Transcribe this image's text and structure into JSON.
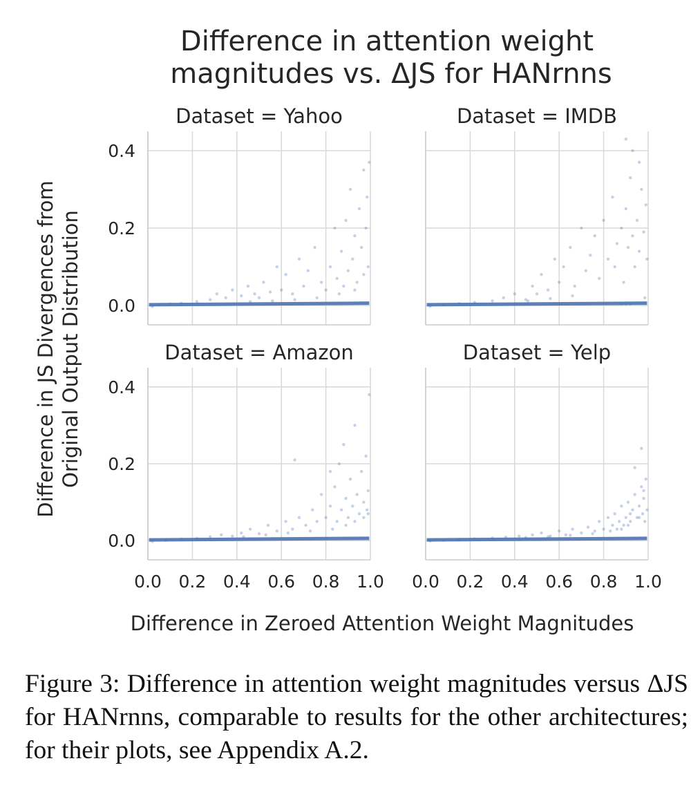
{
  "chart_data": {
    "type": "scatter",
    "title_lines": [
      "Difference in attention weight",
      "magnitudes vs. ΔJS for HANrnns"
    ],
    "xlabel": "Difference in Zeroed Attention Weight Magnitudes",
    "ylabel_lines": [
      "Difference in JS Divergences from",
      "Original Output Distribution"
    ],
    "xlim": [
      0.0,
      1.0
    ],
    "ylim": [
      -0.05,
      0.45
    ],
    "x_ticks": [
      "0.0",
      "0.2",
      "0.4",
      "0.6",
      "0.8",
      "1.0"
    ],
    "y_ticks": [
      "0.0",
      "0.2",
      "0.4"
    ],
    "x_tick_values": [
      0.0,
      0.2,
      0.4,
      0.6,
      0.8,
      1.0
    ],
    "y_tick_values": [
      0.0,
      0.2,
      0.4
    ],
    "grid": true,
    "color": "#4c72b0",
    "panels": [
      {
        "title": "Dataset = Yahoo",
        "points": [
          [
            0.02,
            -0.003
          ],
          [
            0.05,
            0.002
          ],
          [
            0.1,
            0.004
          ],
          [
            0.15,
            0.006
          ],
          [
            0.22,
            0.01
          ],
          [
            0.28,
            0.015
          ],
          [
            0.31,
            0.03
          ],
          [
            0.35,
            0.02
          ],
          [
            0.38,
            0.04
          ],
          [
            0.42,
            0.025
          ],
          [
            0.45,
            0.05
          ],
          [
            0.48,
            0.03
          ],
          [
            0.5,
            0.02
          ],
          [
            0.52,
            0.06
          ],
          [
            0.55,
            0.035
          ],
          [
            0.58,
            0.1
          ],
          [
            0.6,
            0.04
          ],
          [
            0.62,
            0.08
          ],
          [
            0.65,
            0.03
          ],
          [
            0.68,
            0.12
          ],
          [
            0.7,
            0.05
          ],
          [
            0.72,
            0.09
          ],
          [
            0.75,
            0.15
          ],
          [
            0.78,
            0.06
          ],
          [
            0.8,
            0.04
          ],
          [
            0.82,
            0.1
          ],
          [
            0.84,
            0.2
          ],
          [
            0.85,
            0.07
          ],
          [
            0.87,
            0.14
          ],
          [
            0.88,
            0.05
          ],
          [
            0.89,
            0.22
          ],
          [
            0.9,
            0.09
          ],
          [
            0.91,
            0.3
          ],
          [
            0.92,
            0.12
          ],
          [
            0.93,
            0.18
          ],
          [
            0.94,
            0.06
          ],
          [
            0.95,
            0.25
          ],
          [
            0.96,
            0.15
          ],
          [
            0.97,
            0.35
          ],
          [
            0.98,
            0.2
          ],
          [
            0.985,
            0.28
          ],
          [
            0.99,
            0.1
          ],
          [
            0.995,
            0.37
          ],
          [
            0.97,
            0.08
          ],
          [
            0.93,
            0.04
          ],
          [
            0.86,
            0.03
          ],
          [
            0.76,
            0.02
          ],
          [
            0.66,
            0.015
          ],
          [
            0.56,
            0.012
          ],
          [
            0.46,
            0.01
          ]
        ]
      },
      {
        "title": "Dataset = IMDB",
        "points": [
          [
            0.02,
            -0.002
          ],
          [
            0.08,
            0.002
          ],
          [
            0.15,
            0.005
          ],
          [
            0.22,
            0.008
          ],
          [
            0.3,
            0.012
          ],
          [
            0.35,
            0.02
          ],
          [
            0.4,
            0.03
          ],
          [
            0.45,
            0.015
          ],
          [
            0.48,
            0.05
          ],
          [
            0.5,
            0.03
          ],
          [
            0.52,
            0.08
          ],
          [
            0.55,
            0.04
          ],
          [
            0.58,
            0.12
          ],
          [
            0.6,
            0.06
          ],
          [
            0.62,
            0.1
          ],
          [
            0.65,
            0.15
          ],
          [
            0.67,
            0.05
          ],
          [
            0.7,
            0.2
          ],
          [
            0.72,
            0.09
          ],
          [
            0.74,
            0.13
          ],
          [
            0.76,
            0.18
          ],
          [
            0.78,
            0.07
          ],
          [
            0.8,
            0.22
          ],
          [
            0.82,
            0.12
          ],
          [
            0.84,
            0.28
          ],
          [
            0.85,
            0.1
          ],
          [
            0.86,
            0.16
          ],
          [
            0.88,
            0.2
          ],
          [
            0.89,
            0.06
          ],
          [
            0.9,
            0.25
          ],
          [
            0.91,
            0.15
          ],
          [
            0.92,
            0.33
          ],
          [
            0.93,
            0.18
          ],
          [
            0.94,
            0.1
          ],
          [
            0.95,
            0.22
          ],
          [
            0.96,
            0.14
          ],
          [
            0.97,
            0.3
          ],
          [
            0.98,
            0.19
          ],
          [
            0.99,
            0.26
          ],
          [
            0.995,
            0.12
          ],
          [
            0.9,
            0.43
          ],
          [
            0.93,
            0.4
          ],
          [
            0.96,
            0.37
          ],
          [
            0.88,
            0.004
          ],
          [
            0.9,
            0.004
          ],
          [
            0.92,
            0.004
          ],
          [
            0.985,
            0.02
          ],
          [
            0.66,
            0.025
          ],
          [
            0.56,
            0.018
          ],
          [
            0.46,
            0.012
          ]
        ]
      },
      {
        "title": "Dataset = Amazon",
        "points": [
          [
            0.02,
            -0.002
          ],
          [
            0.08,
            0.001
          ],
          [
            0.15,
            0.004
          ],
          [
            0.22,
            0.006
          ],
          [
            0.28,
            0.01
          ],
          [
            0.33,
            0.015
          ],
          [
            0.38,
            0.012
          ],
          [
            0.42,
            0.02
          ],
          [
            0.46,
            0.03
          ],
          [
            0.5,
            0.018
          ],
          [
            0.54,
            0.04
          ],
          [
            0.58,
            0.025
          ],
          [
            0.62,
            0.05
          ],
          [
            0.65,
            0.03
          ],
          [
            0.68,
            0.06
          ],
          [
            0.71,
            0.04
          ],
          [
            0.74,
            0.08
          ],
          [
            0.76,
            0.05
          ],
          [
            0.78,
            0.12
          ],
          [
            0.8,
            0.06
          ],
          [
            0.82,
            0.09
          ],
          [
            0.84,
            0.14
          ],
          [
            0.85,
            0.05
          ],
          [
            0.86,
            0.2
          ],
          [
            0.87,
            0.08
          ],
          [
            0.88,
            0.25
          ],
          [
            0.89,
            0.11
          ],
          [
            0.9,
            0.06
          ],
          [
            0.91,
            0.16
          ],
          [
            0.92,
            0.09
          ],
          [
            0.93,
            0.3
          ],
          [
            0.94,
            0.12
          ],
          [
            0.95,
            0.07
          ],
          [
            0.96,
            0.18
          ],
          [
            0.97,
            0.1
          ],
          [
            0.98,
            0.22
          ],
          [
            0.985,
            0.08
          ],
          [
            0.99,
            0.13
          ],
          [
            0.995,
            0.38
          ],
          [
            0.99,
            0.07
          ],
          [
            0.97,
            0.06
          ],
          [
            0.93,
            0.05
          ],
          [
            0.89,
            0.04
          ],
          [
            0.83,
            0.03
          ],
          [
            0.73,
            0.025
          ],
          [
            0.63,
            0.02
          ],
          [
            0.53,
            0.015
          ],
          [
            0.43,
            0.01
          ],
          [
            0.66,
            0.21
          ],
          [
            0.82,
            0.18
          ]
        ]
      },
      {
        "title": "Dataset = Yelp",
        "points": [
          [
            0.02,
            -0.001
          ],
          [
            0.08,
            0.001
          ],
          [
            0.15,
            0.003
          ],
          [
            0.22,
            0.005
          ],
          [
            0.3,
            0.007
          ],
          [
            0.36,
            0.009
          ],
          [
            0.42,
            0.012
          ],
          [
            0.48,
            0.015
          ],
          [
            0.52,
            0.02
          ],
          [
            0.56,
            0.012
          ],
          [
            0.6,
            0.025
          ],
          [
            0.63,
            0.015
          ],
          [
            0.66,
            0.03
          ],
          [
            0.7,
            0.02
          ],
          [
            0.73,
            0.035
          ],
          [
            0.76,
            0.025
          ],
          [
            0.78,
            0.05
          ],
          [
            0.8,
            0.03
          ],
          [
            0.82,
            0.06
          ],
          [
            0.84,
            0.04
          ],
          [
            0.85,
            0.07
          ],
          [
            0.86,
            0.03
          ],
          [
            0.87,
            0.05
          ],
          [
            0.88,
            0.09
          ],
          [
            0.89,
            0.04
          ],
          [
            0.9,
            0.06
          ],
          [
            0.91,
            0.1
          ],
          [
            0.92,
            0.05
          ],
          [
            0.93,
            0.08
          ],
          [
            0.94,
            0.12
          ],
          [
            0.95,
            0.06
          ],
          [
            0.96,
            0.09
          ],
          [
            0.97,
            0.14
          ],
          [
            0.975,
            0.07
          ],
          [
            0.98,
            0.11
          ],
          [
            0.985,
            0.05
          ],
          [
            0.99,
            0.16
          ],
          [
            0.995,
            0.08
          ],
          [
            0.97,
            0.24
          ],
          [
            0.94,
            0.19
          ],
          [
            0.91,
            0.04
          ],
          [
            0.88,
            0.03
          ],
          [
            0.83,
            0.025
          ],
          [
            0.75,
            0.018
          ],
          [
            0.65,
            0.014
          ],
          [
            0.55,
            0.01
          ],
          [
            0.45,
            0.008
          ],
          [
            0.98,
            0.13
          ],
          [
            0.96,
            0.06
          ],
          [
            0.92,
            0.07
          ]
        ]
      }
    ]
  },
  "caption": {
    "label": "Figure 3:",
    "text": "Difference in attention weight magnitudes versus ΔJS for HANrnns, comparable to results for the other architectures; for their plots, see Appendix A.2."
  }
}
